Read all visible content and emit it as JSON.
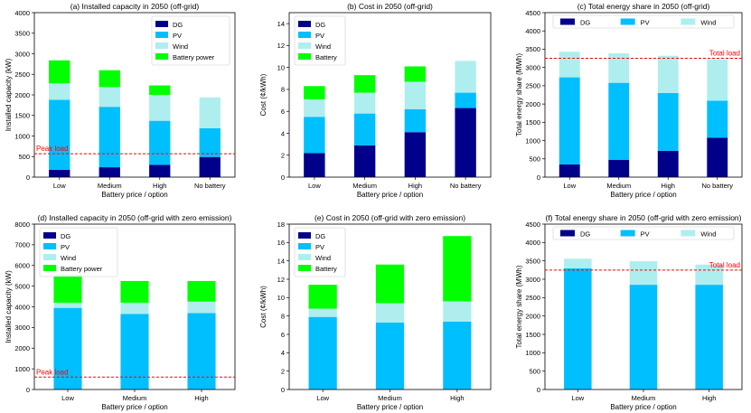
{
  "colors": {
    "DG": "#00008b",
    "PV": "#00bfff",
    "Wind": "#afeeee",
    "Battery": "#00ff00",
    "refline": "#ff0000"
  },
  "chart_data": [
    {
      "type": "bar",
      "stacked": true,
      "title": "(a) Installed capacity in 2050 (off-grid)",
      "xlabel": "Battery price / option",
      "ylabel": "Installed capacity (kW)",
      "categories": [
        "Low",
        "Medium",
        "High",
        "No battery"
      ],
      "ylim": [
        0,
        4000
      ],
      "yticks": [
        0,
        500,
        1000,
        1500,
        2000,
        2500,
        3000,
        3500,
        4000
      ],
      "series": [
        {
          "name": "DG",
          "color_key": "DG",
          "values": [
            180,
            240,
            300,
            490
          ]
        },
        {
          "name": "PV",
          "color_key": "PV",
          "values": [
            1700,
            1470,
            1070,
            700
          ]
        },
        {
          "name": "Wind",
          "color_key": "Wind",
          "values": [
            400,
            480,
            630,
            750
          ]
        },
        {
          "name": "Battery power",
          "color_key": "Battery",
          "values": [
            560,
            410,
            230,
            0
          ]
        }
      ],
      "legend": {
        "position": "top-right",
        "layout": "column",
        "entries": [
          "DG",
          "PV",
          "Wind",
          "Battery power"
        ]
      },
      "refline": {
        "value": 570,
        "label": "Peak load",
        "label_pos": "left"
      }
    },
    {
      "type": "bar",
      "stacked": true,
      "title": "(b) Cost in 2050 (off-grid)",
      "xlabel": "Battery price / option",
      "ylabel": "Cost (¢/kWh)",
      "categories": [
        "Low",
        "Medium",
        "High",
        "No battery"
      ],
      "ylim": [
        0,
        15
      ],
      "yticks": [
        0,
        2,
        4,
        6,
        8,
        10,
        12,
        14
      ],
      "series": [
        {
          "name": "DG",
          "color_key": "DG",
          "values": [
            2.2,
            2.9,
            4.1,
            6.3
          ]
        },
        {
          "name": "PV",
          "color_key": "PV",
          "values": [
            3.3,
            2.9,
            2.1,
            1.4
          ]
        },
        {
          "name": "Wind",
          "color_key": "Wind",
          "values": [
            1.6,
            1.9,
            2.5,
            2.9
          ]
        },
        {
          "name": "Battery",
          "color_key": "Battery",
          "values": [
            1.2,
            1.6,
            1.4,
            0
          ]
        }
      ],
      "legend": {
        "position": "top-left",
        "layout": "column",
        "entries": [
          "DG",
          "PV",
          "Wind",
          "Battery"
        ]
      }
    },
    {
      "type": "bar",
      "stacked": true,
      "title": "(c) Total energy share in 2050 (off-grid)",
      "xlabel": "Battery price / option",
      "ylabel": "Total energy share (MWh)",
      "categories": [
        "Low",
        "Medium",
        "High",
        "No battery"
      ],
      "ylim": [
        0,
        4500
      ],
      "yticks": [
        0,
        500,
        1000,
        1500,
        2000,
        2500,
        3000,
        3500,
        4000,
        4500
      ],
      "series": [
        {
          "name": "DG",
          "color_key": "DG",
          "values": [
            350,
            470,
            720,
            1080
          ]
        },
        {
          "name": "PV",
          "color_key": "PV",
          "values": [
            2380,
            2110,
            1580,
            1010
          ]
        },
        {
          "name": "Wind",
          "color_key": "Wind",
          "values": [
            700,
            810,
            1020,
            1130
          ]
        }
      ],
      "legend": {
        "position": "top",
        "layout": "row",
        "entries": [
          "DG",
          "PV",
          "Wind"
        ]
      },
      "refline": {
        "value": 3250,
        "label": "Total load",
        "label_pos": "right"
      }
    },
    {
      "type": "bar",
      "stacked": true,
      "title": "(d) Installed capacity in 2050 (off-grid with zero emission)",
      "xlabel": "Battery price / option",
      "ylabel": "Installed capacity (kW)",
      "categories": [
        "Low",
        "Medium",
        "High"
      ],
      "ylim": [
        0,
        8000
      ],
      "yticks": [
        0,
        1000,
        2000,
        3000,
        4000,
        5000,
        6000,
        7000,
        8000
      ],
      "series": [
        {
          "name": "DG",
          "color_key": "DG",
          "values": [
            0,
            0,
            0
          ]
        },
        {
          "name": "PV",
          "color_key": "PV",
          "values": [
            3950,
            3650,
            3700
          ]
        },
        {
          "name": "Wind",
          "color_key": "Wind",
          "values": [
            250,
            550,
            550
          ]
        },
        {
          "name": "Battery power",
          "color_key": "Battery",
          "values": [
            1350,
            1050,
            1000
          ]
        }
      ],
      "legend": {
        "position": "top-left",
        "layout": "column",
        "entries": [
          "DG",
          "PV",
          "Wind",
          "Battery power"
        ]
      },
      "refline": {
        "value": 600,
        "label": "Peak load",
        "label_pos": "left"
      }
    },
    {
      "type": "bar",
      "stacked": true,
      "title": "(e) Cost in 2050 (off-grid with zero emission)",
      "xlabel": "Battery price / option",
      "ylabel": "Cost (¢/kWh)",
      "categories": [
        "Low",
        "Medium",
        "High"
      ],
      "ylim": [
        0,
        18
      ],
      "yticks": [
        0,
        2,
        4,
        6,
        8,
        10,
        12,
        14,
        16,
        18
      ],
      "series": [
        {
          "name": "DG",
          "color_key": "DG",
          "values": [
            0,
            0,
            0
          ]
        },
        {
          "name": "PV",
          "color_key": "PV",
          "values": [
            7.9,
            7.3,
            7.4
          ]
        },
        {
          "name": "Wind",
          "color_key": "Wind",
          "values": [
            0.9,
            2.1,
            2.2
          ]
        },
        {
          "name": "Battery",
          "color_key": "Battery",
          "values": [
            2.6,
            4.2,
            7.1
          ]
        }
      ],
      "legend": {
        "position": "top-left",
        "layout": "column",
        "entries": [
          "DG",
          "PV",
          "Wind",
          "Battery"
        ]
      }
    },
    {
      "type": "bar",
      "stacked": true,
      "title": "(f) Total energy share in 2050 (off-grid with zero emission)",
      "xlabel": "Battery price / option",
      "ylabel": "Total energy share (MWh)",
      "categories": [
        "Low",
        "Medium",
        "High"
      ],
      "ylim": [
        0,
        4500
      ],
      "yticks": [
        0,
        500,
        1000,
        1500,
        2000,
        2500,
        3000,
        3500,
        4000,
        4500
      ],
      "series": [
        {
          "name": "DG",
          "color_key": "DG",
          "values": [
            0,
            0,
            0
          ]
        },
        {
          "name": "PV",
          "color_key": "PV",
          "values": [
            3300,
            2850,
            2850
          ]
        },
        {
          "name": "Wind",
          "color_key": "Wind",
          "values": [
            260,
            640,
            550
          ]
        }
      ],
      "legend": {
        "position": "top",
        "layout": "row",
        "entries": [
          "DG",
          "PV",
          "Wind"
        ]
      },
      "refline": {
        "value": 3250,
        "label": "Total load",
        "label_pos": "right"
      }
    }
  ]
}
